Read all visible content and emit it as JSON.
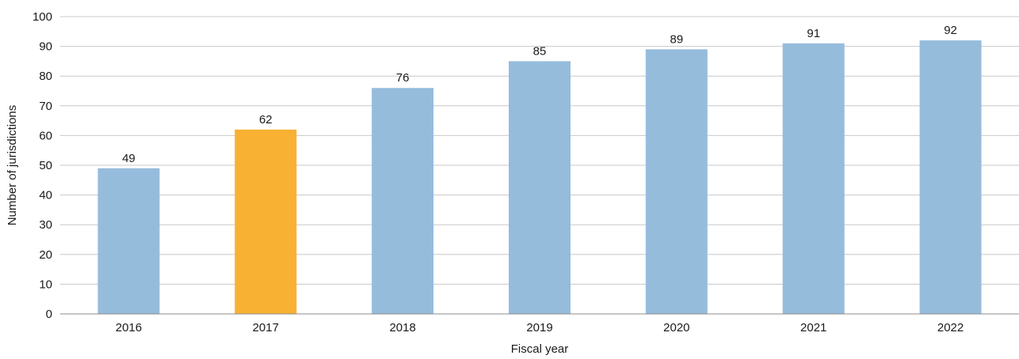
{
  "chart_data": {
    "type": "bar",
    "title": "",
    "xlabel": "Fiscal year",
    "ylabel": "Number of jurisdictions",
    "categories": [
      "2016",
      "2017",
      "2018",
      "2019",
      "2020",
      "2021",
      "2022"
    ],
    "values": [
      49,
      62,
      76,
      85,
      89,
      91,
      92
    ],
    "data_labels": [
      "49",
      "62",
      "76",
      "85",
      "89",
      "91",
      "92"
    ],
    "ylim": [
      0,
      100
    ],
    "yticks": [
      0,
      10,
      20,
      30,
      40,
      50,
      60,
      70,
      80,
      90,
      100
    ],
    "ytick_labels": [
      "0",
      "10",
      "20",
      "30",
      "40",
      "50",
      "60",
      "70",
      "80",
      "90",
      "100"
    ],
    "grid": true,
    "legend": "none",
    "colors": {
      "default_bar": "#96bcdc",
      "highlight_bar": "#f8b133"
    },
    "highlight_index": 1
  }
}
